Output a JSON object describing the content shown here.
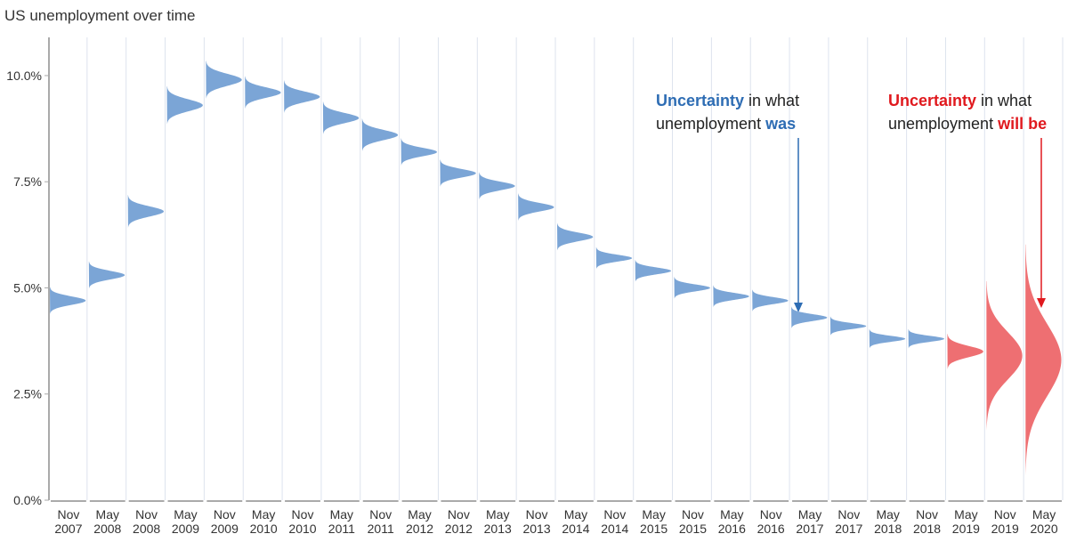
{
  "chart_data": {
    "type": "density",
    "title": "US unemployment over time",
    "categories": [
      [
        "Nov",
        "2007"
      ],
      [
        "May",
        "2008"
      ],
      [
        "Nov",
        "2008"
      ],
      [
        "May",
        "2009"
      ],
      [
        "Nov",
        "2009"
      ],
      [
        "May",
        "2010"
      ],
      [
        "Nov",
        "2010"
      ],
      [
        "May",
        "2011"
      ],
      [
        "Nov",
        "2011"
      ],
      [
        "May",
        "2012"
      ],
      [
        "Nov",
        "2012"
      ],
      [
        "May",
        "2013"
      ],
      [
        "Nov",
        "2013"
      ],
      [
        "May",
        "2014"
      ],
      [
        "Nov",
        "2014"
      ],
      [
        "May",
        "2015"
      ],
      [
        "Nov",
        "2015"
      ],
      [
        "May",
        "2016"
      ],
      [
        "Nov",
        "2016"
      ],
      [
        "May",
        "2017"
      ],
      [
        "Nov",
        "2017"
      ],
      [
        "May",
        "2018"
      ],
      [
        "Nov",
        "2018"
      ],
      [
        "May",
        "2019"
      ],
      [
        "Nov",
        "2019"
      ],
      [
        "May",
        "2020"
      ]
    ],
    "values": [
      4.7,
      5.3,
      6.8,
      9.3,
      9.9,
      9.6,
      9.5,
      9.0,
      8.6,
      8.2,
      7.7,
      7.4,
      6.9,
      6.2,
      5.7,
      5.4,
      5.0,
      4.8,
      4.7,
      4.3,
      4.1,
      3.8,
      3.8,
      3.5,
      3.4,
      3.3
    ],
    "spreads": [
      0.1,
      0.1,
      0.12,
      0.14,
      0.14,
      0.12,
      0.12,
      0.12,
      0.12,
      0.1,
      0.1,
      0.1,
      0.1,
      0.1,
      0.08,
      0.08,
      0.08,
      0.08,
      0.08,
      0.08,
      0.07,
      0.07,
      0.07,
      0.13,
      0.55,
      0.85
    ],
    "colors": [
      "#7ba5d6",
      "#7ba5d6",
      "#7ba5d6",
      "#7ba5d6",
      "#7ba5d6",
      "#7ba5d6",
      "#7ba5d6",
      "#7ba5d6",
      "#7ba5d6",
      "#7ba5d6",
      "#7ba5d6",
      "#7ba5d6",
      "#7ba5d6",
      "#7ba5d6",
      "#7ba5d6",
      "#7ba5d6",
      "#7ba5d6",
      "#7ba5d6",
      "#7ba5d6",
      "#7ba5d6",
      "#7ba5d6",
      "#7ba5d6",
      "#7ba5d6",
      "#ee6f72",
      "#ee6f72",
      "#ee6f72"
    ],
    "ylim": [
      0,
      10.9
    ],
    "yticks": [
      {
        "value": 0,
        "label": "0.0%"
      },
      {
        "value": 2.5,
        "label": "2.5%"
      },
      {
        "value": 5,
        "label": "5.0%"
      },
      {
        "value": 7.5,
        "label": "7.5%"
      },
      {
        "value": 10,
        "label": "10.0%"
      }
    ],
    "annotations": [
      {
        "lines": [
          [
            {
              "text": "Uncertainty",
              "color": "#2e6db4"
            },
            {
              "text": " in what"
            }
          ],
          [
            {
              "text": "unemployment "
            },
            {
              "text": "was",
              "color": "#2e6db4"
            }
          ]
        ]
      },
      {
        "lines": [
          [
            {
              "text": "Uncertainty",
              "color": "#e0191e"
            },
            {
              "text": " in what"
            }
          ],
          [
            {
              "text": "unemployment "
            },
            {
              "text": "will be",
              "color": "#e0191e"
            }
          ]
        ]
      }
    ]
  }
}
